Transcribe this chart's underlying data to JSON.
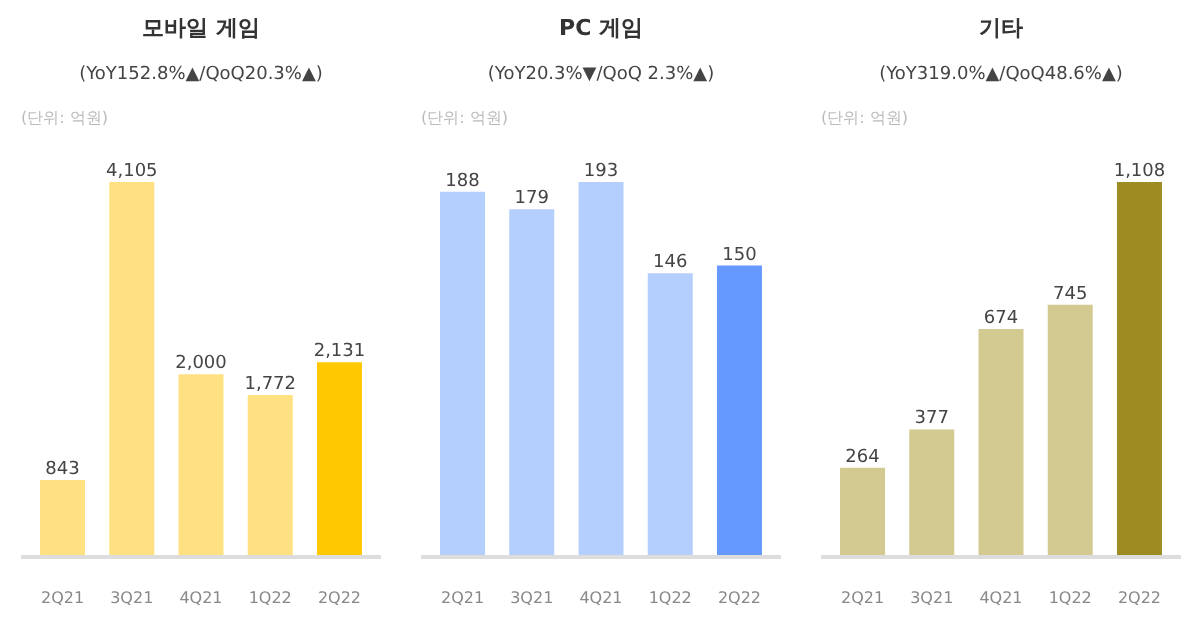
{
  "chart_data": [
    {
      "type": "bar",
      "title": "모바일 게임",
      "subtitle": "(YoY152.8%▲/QoQ20.3%▲)",
      "annotations": [
        "(단위: 억원)"
      ],
      "categories": [
        "2Q21",
        "3Q21",
        "4Q21",
        "1Q22",
        "2Q22"
      ],
      "values": [
        843,
        4105,
        2000,
        1772,
        2131
      ],
      "value_labels": [
        "843",
        "4,105",
        "2,000",
        "1,772",
        "2,131"
      ],
      "colors": [
        "#ffe182",
        "#ffe182",
        "#ffe182",
        "#ffe182",
        "#ffc800"
      ],
      "tick_labels": "x",
      "grid": false
    },
    {
      "type": "bar",
      "title": "PC 게임",
      "subtitle": "(YoY20.3%▼/QoQ 2.3%▲)",
      "annotations": [
        "(단위: 억원)"
      ],
      "categories": [
        "2Q21",
        "3Q21",
        "4Q21",
        "1Q22",
        "2Q22"
      ],
      "values": [
        188,
        179,
        193,
        146,
        150
      ],
      "value_labels": [
        "188",
        "179",
        "193",
        "146",
        "150"
      ],
      "colors": [
        "#b4cefd",
        "#b4cefd",
        "#b4cefd",
        "#b4cefd",
        "#6699ff"
      ],
      "tick_labels": "x",
      "grid": false
    },
    {
      "type": "bar",
      "title": "기타",
      "subtitle": "(YoY319.0%▲/QoQ48.6%▲)",
      "annotations": [
        "(단위: 억원)"
      ],
      "categories": [
        "2Q21",
        "3Q21",
        "4Q21",
        "1Q22",
        "2Q22"
      ],
      "values": [
        264,
        377,
        674,
        745,
        1108
      ],
      "value_labels": [
        "264",
        "377",
        "674",
        "745",
        "1,108"
      ],
      "colors": [
        "#d3ca91",
        "#d3ca91",
        "#d3ca91",
        "#d3ca91",
        "#9c8c22"
      ],
      "tick_labels": "x",
      "grid": false
    }
  ]
}
